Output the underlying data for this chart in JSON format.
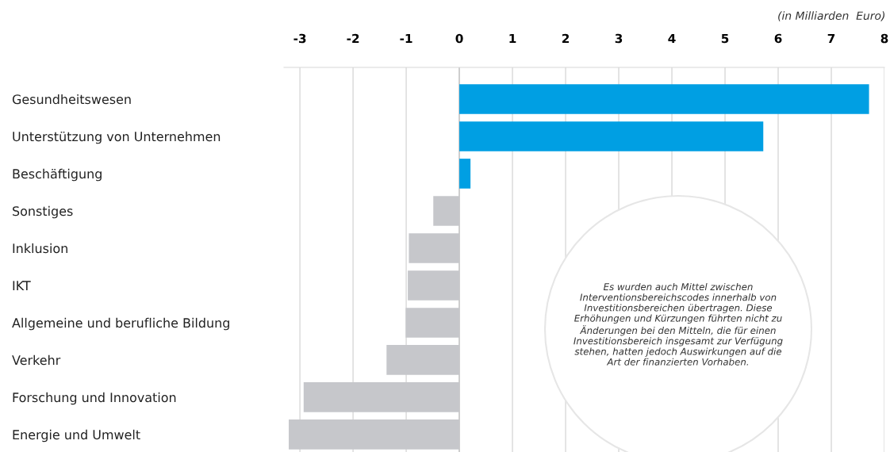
{
  "chart_data": {
    "type": "bar",
    "orientation": "horizontal",
    "categories": [
      "Gesundheitswesen",
      "Unterstützung von Unternehmen",
      "Beschäftigung",
      "Sonstiges",
      "Inklusion",
      "IKT",
      "Allgemeine und berufliche Bildung",
      "Verkehr",
      "Forschung und Innovation",
      "Energie und Umwelt"
    ],
    "values": [
      7.71,
      5.72,
      0.21,
      -0.49,
      -0.95,
      -0.97,
      -1.01,
      -1.37,
      -2.93,
      -3.21
    ],
    "colors": [
      "#009fe3",
      "#009fe3",
      "#009fe3",
      "#c6c7cb",
      "#c6c7cb",
      "#c6c7cb",
      "#c6c7cb",
      "#c6c7cb",
      "#c6c7cb",
      "#c6c7cb"
    ],
    "xlim": [
      -3.3,
      8.0
    ],
    "xticks": [
      {
        "value": -3,
        "label": "-3"
      },
      {
        "value": -2,
        "label": "-2"
      },
      {
        "value": -1,
        "label": "-1"
      },
      0,
      1,
      2,
      3,
      4,
      5,
      6,
      7,
      8
    ],
    "grid": "x",
    "annotations": [
      "(in Milliarden  Euro)",
      "Es wurden auch Mittel zwischen Interventionsbereichscodes innerhalb von Investitionsbereichen übertragen. Diese Erhöhungen und Kürzungen führten nicht zu Änderungen bei den Mitteln, die für einen Investitionsbereich insgesamt zur Verfügung stehen, hatten jedoch Auswirkungen auf die Art der finanzierten Vorhaben."
    ]
  }
}
